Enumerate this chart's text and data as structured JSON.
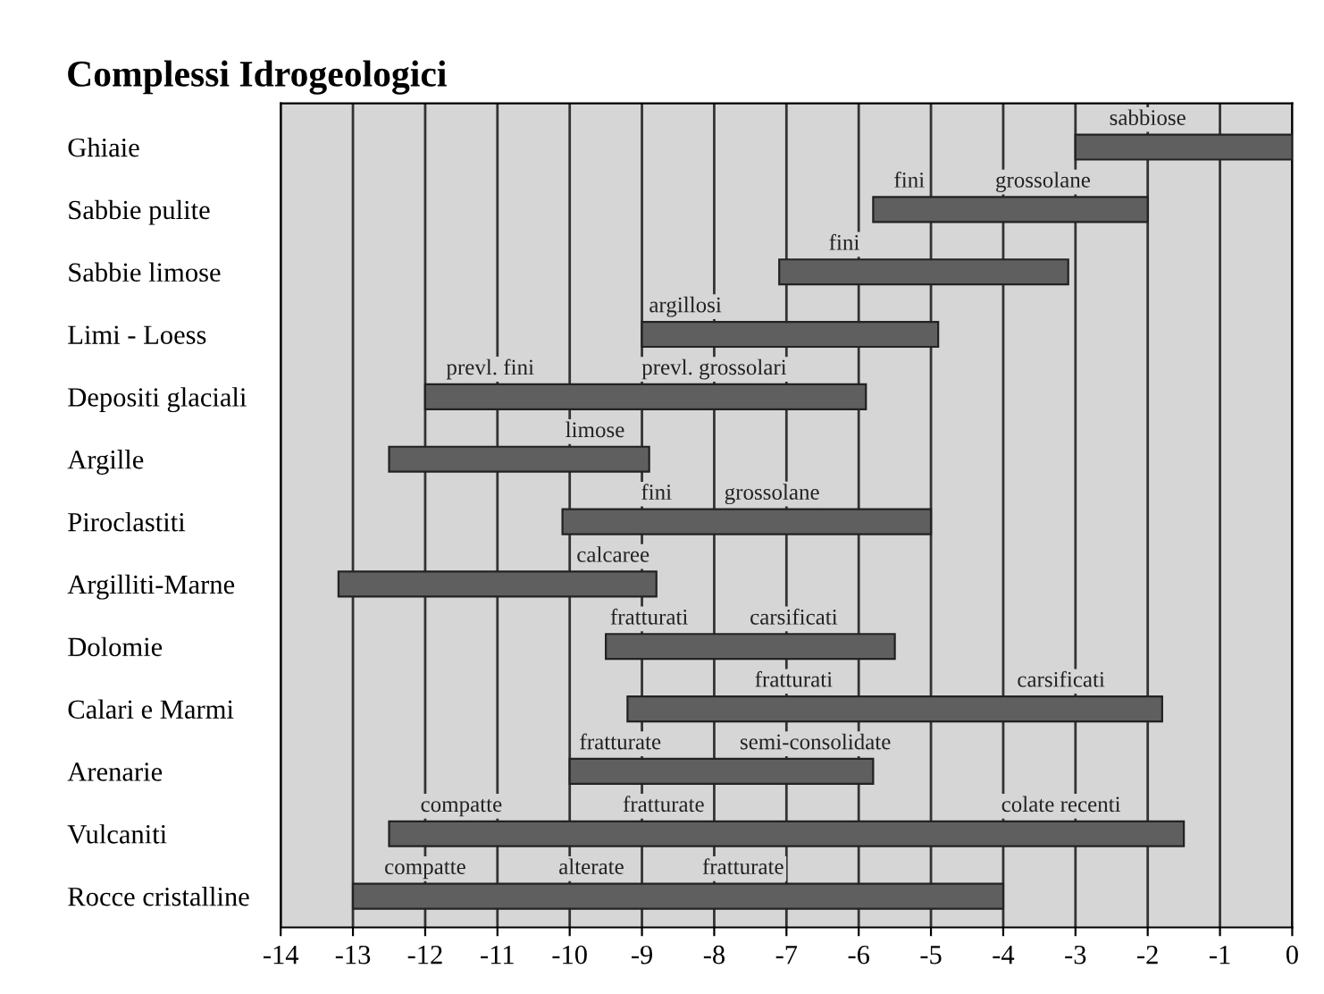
{
  "chart_data": {
    "type": "bar",
    "orientation": "horizontal",
    "title": "Complessi Idrogeologici",
    "categories": [
      "Ghiaie",
      "Sabbie pulite",
      "Sabbie limose",
      "Limi - Loess",
      "Depositi glaciali",
      "Argille",
      "Piroclastiti",
      "Argilliti-Marne",
      "Dolomie",
      "Calari e Marmi",
      "Arenarie",
      "Vulcaniti",
      "Rocce cristalline"
    ],
    "base": [
      -3,
      -5.8,
      -7.1,
      -9,
      -12,
      -12.5,
      -10.1,
      -13.2,
      -9.5,
      -9.2,
      -10,
      -12.5,
      -13
    ],
    "values": [
      3,
      3.8,
      4,
      4.1,
      6.1,
      3.6,
      5.1,
      4.4,
      4,
      7.4,
      4.2,
      11,
      9
    ],
    "color": "#5f5f5f",
    "xlim": [
      -14,
      0
    ],
    "xticks": [
      -14,
      -13,
      -12,
      -11,
      -10,
      -9,
      -8,
      -7,
      -6,
      -5,
      -4,
      -3,
      -2,
      -1,
      0
    ],
    "grid": "x",
    "annotations": [
      "sabbiose",
      "fini",
      "grossolane",
      "fini",
      "argillosi",
      "prevl. fini",
      "prevl. grossolari",
      "limose",
      "fini",
      "grossolane",
      "calcaree",
      "fratturati",
      "carsificati",
      "fratturati",
      "carsificati",
      "fratturate",
      "semi-consolidate",
      "compatte",
      "fratturate",
      "colate recenti",
      "compatte",
      "alterate",
      "fratturate"
    ]
  }
}
